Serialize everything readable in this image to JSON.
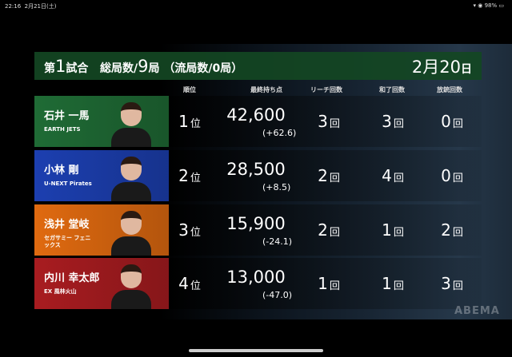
{
  "status_bar": {
    "time": "22:16",
    "date": "2月21日(土)",
    "battery": "98%"
  },
  "header": {
    "game_prefix": "第",
    "game_no": "1",
    "game_suffix": "試合",
    "total_label": "総局数/",
    "total": "9",
    "total_unit": "局",
    "draw_label": "（流局数/0局）",
    "date_month": "2月",
    "date_day": "20",
    "date_unit": "日"
  },
  "columns": [
    "順位",
    "最終持ち点",
    "リーチ回数",
    "和了回数",
    "放銃回数"
  ],
  "players": [
    {
      "name": "石井 一馬",
      "team": "EARTH JETS",
      "rank": "1",
      "rank_unit": "位",
      "score": "42,600",
      "diff": "(+62.6)",
      "riichi": "3",
      "agari": "3",
      "houjuu": "0",
      "color": "#1f6b35"
    },
    {
      "name": "小林 剛",
      "team": "U-NEXT Pirates",
      "rank": "2",
      "rank_unit": "位",
      "score": "28,500",
      "diff": "(+8.5)",
      "riichi": "2",
      "agari": "4",
      "houjuu": "0",
      "color": "#1c3fb0"
    },
    {
      "name": "浅井 堂岐",
      "team": "セガサミー フェニックス",
      "rank": "3",
      "rank_unit": "位",
      "score": "15,900",
      "diff": "(-24.1)",
      "riichi": "2",
      "agari": "1",
      "houjuu": "2",
      "color": "#e06a10"
    },
    {
      "name": "内川 幸太郎",
      "team": "EX 風林火山",
      "rank": "4",
      "rank_unit": "位",
      "score": "13,000",
      "diff": "(-47.0)",
      "riichi": "1",
      "agari": "1",
      "houjuu": "3",
      "color": "#a81c20"
    }
  ],
  "count_unit": "回",
  "watermark": "ABEMA"
}
